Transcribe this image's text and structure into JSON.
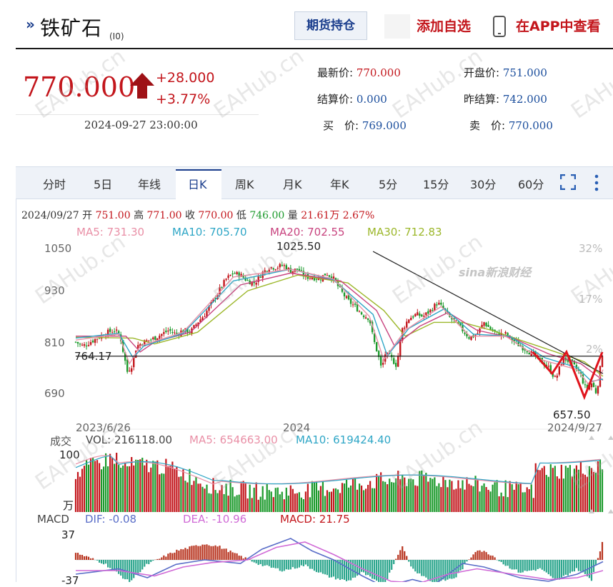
{
  "header": {
    "title": "铁矿石",
    "code": "(I0)",
    "futures_button": "期货持仓",
    "add_favorite": "添加自选",
    "view_in_app": "在APP中查看"
  },
  "quote": {
    "price": "770.000",
    "change": "+28.000",
    "change_pct": "+3.77%",
    "timestamp": "2024-09-27 23:00:00",
    "latest_label": "最新价:",
    "latest_value": "770.000",
    "open_label": "开盘价:",
    "open_value": "751.000",
    "settle_label": "结算价:",
    "settle_value": "0.000",
    "prev_settle_label": "昨结算:",
    "prev_settle_value": "742.000",
    "bid_label": "买　价:",
    "bid_value": "769.000",
    "ask_label": "卖　价:",
    "ask_value": "770.000"
  },
  "watermark": "EAHub.cn",
  "logo_text": "sina新浪财经",
  "tabs": [
    "分时",
    "5日",
    "年线",
    "日K",
    "周K",
    "月K",
    "年K",
    "5分",
    "15分",
    "30分",
    "60分"
  ],
  "active_tab": "日K",
  "stats": {
    "date": "2024/09/27",
    "open_label": "开",
    "open": "751.00",
    "high_label": "高",
    "high": "771.00",
    "close_label": "收",
    "close": "770.00",
    "low_label": "低",
    "low": "746.00",
    "vol_label": "量",
    "vol": "21.61万",
    "pct": "2.67%"
  },
  "ma": {
    "ma5": "MA5: 731.30",
    "ma10": "MA10: 705.70",
    "ma20": "MA20: 702.55",
    "ma30": "MA30: 712.83"
  },
  "colors": {
    "up": "#c3161c",
    "down": "#1c9a2c",
    "ma5": "#e98fa6",
    "ma10": "#2ea6c6",
    "ma20": "#c8447f",
    "ma30": "#9cb72a"
  },
  "vol_panel": {
    "title": "成交",
    "vol": "VOL: 216118.00",
    "ma5": "MA5: 654663.00",
    "ma10": "MA10: 619424.40",
    "y_top": "100",
    "unit": "万"
  },
  "macd_panel": {
    "title": "MACD",
    "dif": "DIF: -0.08",
    "dea": "DEA: -10.96",
    "macd": "MACD: 21.75",
    "y_top": "37",
    "y_bottom": "-37"
  },
  "chart_data": {
    "type": "candlestick",
    "x_labels": [
      "2023/6/26",
      "2024",
      "2024/9/27"
    ],
    "y_ticks": [
      "1050",
      "930",
      "810",
      "690"
    ],
    "pct_ticks": [
      "32%",
      "17%",
      "2%"
    ],
    "ylim": [
      635,
      1070
    ],
    "horizontal_line": {
      "value": 764.17,
      "label": "764.17"
    },
    "annotations": {
      "high": "1025.50",
      "low": "657.50"
    },
    "close_path": [
      [
        0,
        800
      ],
      [
        10,
        790
      ],
      [
        20,
        800
      ],
      [
        30,
        810
      ],
      [
        45,
        825
      ],
      [
        55,
        830
      ],
      [
        62,
        815
      ],
      [
        68,
        760
      ],
      [
        72,
        725
      ],
      [
        78,
        740
      ],
      [
        85,
        790
      ],
      [
        95,
        800
      ],
      [
        110,
        810
      ],
      [
        120,
        820
      ],
      [
        130,
        830
      ],
      [
        140,
        820
      ],
      [
        150,
        830
      ],
      [
        160,
        825
      ],
      [
        170,
        850
      ],
      [
        180,
        870
      ],
      [
        190,
        900
      ],
      [
        200,
        930
      ],
      [
        210,
        960
      ],
      [
        220,
        975
      ],
      [
        230,
        970
      ],
      [
        240,
        955
      ],
      [
        250,
        950
      ],
      [
        260,
        975
      ],
      [
        270,
        990
      ],
      [
        280,
        990
      ],
      [
        290,
        995
      ],
      [
        300,
        980
      ],
      [
        310,
        985
      ],
      [
        320,
        965
      ],
      [
        330,
        965
      ],
      [
        340,
        960
      ],
      [
        350,
        975
      ],
      [
        360,
        960
      ],
      [
        370,
        930
      ],
      [
        380,
        905
      ],
      [
        390,
        890
      ],
      [
        400,
        870
      ],
      [
        410,
        860
      ],
      [
        415,
        810
      ],
      [
        420,
        780
      ],
      [
        423,
        760
      ],
      [
        427,
        730
      ],
      [
        432,
        770
      ],
      [
        440,
        760
      ],
      [
        448,
        740
      ],
      [
        455,
        830
      ],
      [
        465,
        860
      ],
      [
        475,
        870
      ],
      [
        485,
        865
      ],
      [
        495,
        880
      ],
      [
        505,
        900
      ],
      [
        515,
        880
      ],
      [
        520,
        865
      ],
      [
        530,
        850
      ],
      [
        540,
        830
      ],
      [
        550,
        810
      ],
      [
        560,
        820
      ],
      [
        570,
        850
      ],
      [
        580,
        830
      ],
      [
        590,
        820
      ],
      [
        600,
        820
      ],
      [
        610,
        805
      ],
      [
        620,
        790
      ],
      [
        630,
        780
      ],
      [
        640,
        765
      ],
      [
        650,
        750
      ],
      [
        660,
        735
      ],
      [
        670,
        705
      ],
      [
        680,
        760
      ],
      [
        690,
        750
      ],
      [
        700,
        730
      ],
      [
        705,
        715
      ],
      [
        712,
        680
      ],
      [
        720,
        695
      ],
      [
        727,
        670
      ],
      [
        735,
        770
      ]
    ],
    "ma5_path": [
      [
        0,
        805
      ],
      [
        60,
        820
      ],
      [
        75,
        745
      ],
      [
        90,
        790
      ],
      [
        150,
        825
      ],
      [
        220,
        965
      ],
      [
        300,
        985
      ],
      [
        360,
        960
      ],
      [
        410,
        865
      ],
      [
        430,
        755
      ],
      [
        460,
        830
      ],
      [
        510,
        890
      ],
      [
        550,
        815
      ],
      [
        600,
        815
      ],
      [
        650,
        755
      ],
      [
        700,
        730
      ],
      [
        715,
        695
      ],
      [
        730,
        705
      ],
      [
        736,
        730
      ]
    ],
    "ma10_path": [
      [
        0,
        810
      ],
      [
        60,
        822
      ],
      [
        80,
        760
      ],
      [
        95,
        790
      ],
      [
        150,
        822
      ],
      [
        220,
        955
      ],
      [
        300,
        985
      ],
      [
        360,
        958
      ],
      [
        415,
        870
      ],
      [
        435,
        765
      ],
      [
        465,
        835
      ],
      [
        515,
        885
      ],
      [
        555,
        820
      ],
      [
        605,
        815
      ],
      [
        655,
        760
      ],
      [
        700,
        735
      ],
      [
        720,
        700
      ],
      [
        736,
        706
      ]
    ],
    "ma20_path": [
      [
        0,
        815
      ],
      [
        70,
        815
      ],
      [
        90,
        775
      ],
      [
        110,
        800
      ],
      [
        160,
        825
      ],
      [
        230,
        945
      ],
      [
        300,
        975
      ],
      [
        370,
        955
      ],
      [
        420,
        880
      ],
      [
        445,
        790
      ],
      [
        480,
        840
      ],
      [
        520,
        875
      ],
      [
        560,
        830
      ],
      [
        610,
        810
      ],
      [
        660,
        770
      ],
      [
        705,
        745
      ],
      [
        736,
        703
      ]
    ],
    "ma30_path": [
      [
        0,
        812
      ],
      [
        80,
        810
      ],
      [
        110,
        795
      ],
      [
        170,
        825
      ],
      [
        240,
        930
      ],
      [
        310,
        970
      ],
      [
        380,
        950
      ],
      [
        430,
        880
      ],
      [
        460,
        815
      ],
      [
        500,
        850
      ],
      [
        540,
        850
      ],
      [
        580,
        830
      ],
      [
        620,
        805
      ],
      [
        670,
        775
      ],
      [
        710,
        750
      ],
      [
        736,
        713
      ]
    ],
    "trend_line": [
      [
        415,
        1030
      ],
      [
        736,
        720
      ]
    ],
    "w_pattern": [
      [
        638,
        775
      ],
      [
        665,
        720
      ],
      [
        685,
        775
      ],
      [
        710,
        660
      ],
      [
        735,
        775
      ]
    ]
  }
}
